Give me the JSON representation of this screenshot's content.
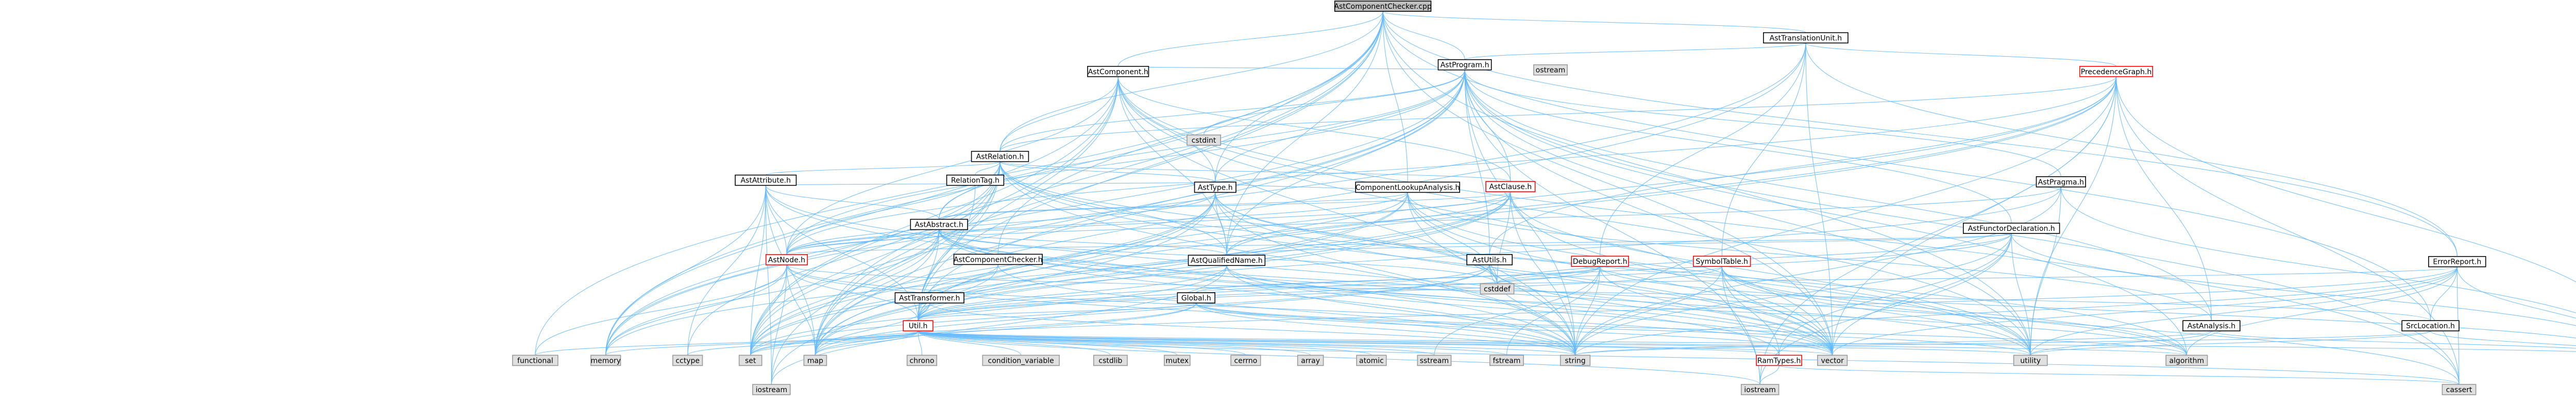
{
  "graph": {
    "root": "AstComponentChecker.cpp",
    "nodes": [
      {
        "id": "root",
        "label": "AstComponentChecker.cpp",
        "kind": "root"
      },
      {
        "id": "tu",
        "label": "AstTranslationUnit.h",
        "kind": "header"
      },
      {
        "id": "prog",
        "label": "AstProgram.h",
        "kind": "header"
      },
      {
        "id": "prec",
        "label": "PrecedenceGraph.h",
        "kind": "headerred"
      },
      {
        "id": "comp",
        "label": "AstComponent.h",
        "kind": "header"
      },
      {
        "id": "rel",
        "label": "AstRelation.h",
        "kind": "header"
      },
      {
        "id": "ostd",
        "label": "ostream",
        "kind": "system"
      },
      {
        "id": "attr",
        "label": "AstAttribute.h",
        "kind": "header"
      },
      {
        "id": "reltag",
        "label": "RelationTag.h",
        "kind": "header"
      },
      {
        "id": "cla",
        "label": "ComponentLookupAnalysis.h",
        "kind": "header"
      },
      {
        "id": "astty",
        "label": "AstType.h",
        "kind": "header"
      },
      {
        "id": "clause",
        "label": "AstClause.h",
        "kind": "headerred"
      },
      {
        "id": "pragma",
        "label": "AstPragma.h",
        "kind": "header"
      },
      {
        "id": "abstr",
        "label": "AstAbstract.h",
        "kind": "header"
      },
      {
        "id": "ccheck",
        "label": "AstComponentChecker.h",
        "kind": "header"
      },
      {
        "id": "sdecl",
        "label": "AstFunctorDeclaration.h",
        "kind": "header"
      },
      {
        "id": "astutils",
        "label": "AstUtils.h",
        "kind": "header"
      },
      {
        "id": "node",
        "label": "AstNode.h",
        "kind": "headerred"
      },
      {
        "id": "qname",
        "label": "AstQualifiedName.h",
        "kind": "header"
      },
      {
        "id": "debug",
        "label": "DebugReport.h",
        "kind": "headerred"
      },
      {
        "id": "symtab",
        "label": "SymbolTable.h",
        "kind": "headerred"
      },
      {
        "id": "errrep",
        "label": "ErrorReport.h",
        "kind": "header"
      },
      {
        "id": "xform",
        "label": "AstTransformer.h",
        "kind": "header"
      },
      {
        "id": "global",
        "label": "Global.h",
        "kind": "header"
      },
      {
        "id": "util",
        "label": "Util.h",
        "kind": "headerred"
      },
      {
        "id": "analysis",
        "label": "AstAnalysis.h",
        "kind": "header"
      },
      {
        "id": "srcloc",
        "label": "SrcLocation.h",
        "kind": "header"
      },
      {
        "id": "ramtypes",
        "label": "RamTypes.h",
        "kind": "headerred"
      },
      {
        "id": "ostream",
        "label": "ostream",
        "kind": "system"
      },
      {
        "id": "cstddef",
        "label": "cstddef",
        "kind": "system"
      },
      {
        "id": "functional",
        "label": "functional",
        "kind": "system"
      },
      {
        "id": "memory",
        "label": "memory",
        "kind": "system"
      },
      {
        "id": "cctype",
        "label": "cctype",
        "kind": "system"
      },
      {
        "id": "set",
        "label": "set",
        "kind": "system"
      },
      {
        "id": "map",
        "label": "map",
        "kind": "system"
      },
      {
        "id": "chrono",
        "label": "chrono",
        "kind": "system"
      },
      {
        "id": "condvar",
        "label": "condition_variable",
        "kind": "system"
      },
      {
        "id": "cstdlib",
        "label": "cstdlib",
        "kind": "system"
      },
      {
        "id": "mutex",
        "label": "mutex",
        "kind": "system"
      },
      {
        "id": "cerrno",
        "label": "cerrno",
        "kind": "system"
      },
      {
        "id": "array",
        "label": "array",
        "kind": "system"
      },
      {
        "id": "atomic",
        "label": "atomic",
        "kind": "system"
      },
      {
        "id": "sstream",
        "label": "sstream",
        "kind": "system"
      },
      {
        "id": "fstream",
        "label": "fstream",
        "kind": "system"
      },
      {
        "id": "string",
        "label": "string",
        "kind": "system"
      },
      {
        "id": "vector",
        "label": "vector",
        "kind": "system"
      },
      {
        "id": "utility",
        "label": "utility",
        "kind": "system"
      },
      {
        "id": "algorithm",
        "label": "algorithm",
        "kind": "system"
      },
      {
        "id": "iostream2",
        "label": "iostream",
        "kind": "system"
      },
      {
        "id": "iostream",
        "label": "iostream",
        "kind": "system"
      },
      {
        "id": "cassert",
        "label": "cassert",
        "kind": "system"
      },
      {
        "id": "cstdint",
        "label": "cstdint",
        "kind": "system"
      }
    ],
    "edges": [
      [
        "root",
        "tu"
      ],
      [
        "root",
        "prog"
      ],
      [
        "root",
        "comp"
      ],
      [
        "root",
        "rel"
      ],
      [
        "root",
        "astty"
      ],
      [
        "root",
        "cla"
      ],
      [
        "root",
        "qname"
      ],
      [
        "root",
        "ccheck"
      ],
      [
        "root",
        "srcloc"
      ],
      [
        "root",
        "errrep"
      ],
      [
        "root",
        "util"
      ],
      [
        "root",
        "functional"
      ],
      [
        "root",
        "memory"
      ],
      [
        "root",
        "map"
      ],
      [
        "root",
        "set"
      ],
      [
        "root",
        "utility"
      ],
      [
        "root",
        "vector"
      ],
      [
        "tu",
        "prog"
      ],
      [
        "tu",
        "prec"
      ],
      [
        "tu",
        "errrep"
      ],
      [
        "tu",
        "debug"
      ],
      [
        "tu",
        "symtab"
      ],
      [
        "tu",
        "memory"
      ],
      [
        "tu",
        "map"
      ],
      [
        "tu",
        "vector"
      ],
      [
        "prog",
        "comp"
      ],
      [
        "prog",
        "rel"
      ],
      [
        "prog",
        "clause"
      ],
      [
        "prog",
        "astty"
      ],
      [
        "prog",
        "sdecl"
      ],
      [
        "prog",
        "abstr"
      ],
      [
        "prog",
        "pragma"
      ],
      [
        "prog",
        "qname"
      ],
      [
        "prog",
        "astutils"
      ],
      [
        "prog",
        "node"
      ],
      [
        "prog",
        "analysis"
      ],
      [
        "prog",
        "util"
      ],
      [
        "prog",
        "cstdint"
      ],
      [
        "prog",
        "map"
      ],
      [
        "prog",
        "set"
      ],
      [
        "prog",
        "string"
      ],
      [
        "prog",
        "vector"
      ],
      [
        "prog",
        "memory"
      ],
      [
        "prog",
        "iostream"
      ],
      [
        "prog",
        "cassert"
      ],
      [
        "prog",
        "algorithm"
      ],
      [
        "prog",
        "utility"
      ],
      [
        "prec",
        "rel"
      ],
      [
        "prec",
        "analysis"
      ],
      [
        "prec",
        "astutils"
      ],
      [
        "prec",
        "node"
      ],
      [
        "prec",
        "util"
      ],
      [
        "prec",
        "string"
      ],
      [
        "prec",
        "vector"
      ],
      [
        "prec",
        "set"
      ],
      [
        "prec",
        "map"
      ],
      [
        "prec",
        "iostream"
      ],
      [
        "prec",
        "cassert"
      ],
      [
        "prec",
        "utility"
      ],
      [
        "prec",
        "ostream"
      ],
      [
        "comp",
        "rel"
      ],
      [
        "comp",
        "clause"
      ],
      [
        "comp",
        "astty"
      ],
      [
        "comp",
        "qname"
      ],
      [
        "comp",
        "node"
      ],
      [
        "comp",
        "util"
      ],
      [
        "comp",
        "set"
      ],
      [
        "comp",
        "map"
      ],
      [
        "comp",
        "string"
      ],
      [
        "comp",
        "vector"
      ],
      [
        "comp",
        "memory"
      ],
      [
        "comp",
        "utility"
      ],
      [
        "comp",
        "cassert"
      ],
      [
        "rel",
        "attr"
      ],
      [
        "rel",
        "reltag"
      ],
      [
        "rel",
        "clause"
      ],
      [
        "rel",
        "astty"
      ],
      [
        "rel",
        "abstr"
      ],
      [
        "rel",
        "qname"
      ],
      [
        "rel",
        "node"
      ],
      [
        "rel",
        "util"
      ],
      [
        "rel",
        "set"
      ],
      [
        "rel",
        "string"
      ],
      [
        "rel",
        "vector"
      ],
      [
        "rel",
        "cstddef"
      ],
      [
        "rel",
        "map"
      ],
      [
        "rel",
        "iostream2"
      ],
      [
        "rel",
        "memory"
      ],
      [
        "rel",
        "cctype"
      ],
      [
        "rel",
        "utility"
      ],
      [
        "attr",
        "abstr"
      ],
      [
        "attr",
        "node"
      ],
      [
        "attr",
        "astty"
      ],
      [
        "attr",
        "util"
      ],
      [
        "attr",
        "cctype"
      ],
      [
        "attr",
        "set"
      ],
      [
        "attr",
        "string"
      ],
      [
        "attr",
        "memory"
      ],
      [
        "attr",
        "vector"
      ],
      [
        "attr",
        "map"
      ],
      [
        "attr",
        "iostream2"
      ],
      [
        "reltag",
        "util"
      ],
      [
        "cla",
        "abstr"
      ],
      [
        "cla",
        "astty"
      ],
      [
        "cla",
        "qname"
      ],
      [
        "cla",
        "node"
      ],
      [
        "cla",
        "analysis"
      ],
      [
        "cla",
        "cstddef"
      ],
      [
        "cla",
        "map"
      ],
      [
        "cla",
        "set"
      ],
      [
        "cla",
        "string"
      ],
      [
        "cla",
        "vector"
      ],
      [
        "cla",
        "utility"
      ],
      [
        "astty",
        "node"
      ],
      [
        "astty",
        "qname"
      ],
      [
        "astty",
        "util"
      ],
      [
        "astty",
        "cstddef"
      ],
      [
        "astty",
        "set"
      ],
      [
        "astty",
        "string"
      ],
      [
        "astty",
        "map"
      ],
      [
        "astty",
        "vector"
      ],
      [
        "astty",
        "iostream2"
      ],
      [
        "astty",
        "algorithm"
      ],
      [
        "clause",
        "abstr"
      ],
      [
        "clause",
        "node"
      ],
      [
        "clause",
        "qname"
      ],
      [
        "clause",
        "util"
      ],
      [
        "clause",
        "cstddef"
      ],
      [
        "clause",
        "set"
      ],
      [
        "clause",
        "string"
      ],
      [
        "clause",
        "vector"
      ],
      [
        "clause",
        "memory"
      ],
      [
        "clause",
        "utility"
      ],
      [
        "clause",
        "map"
      ],
      [
        "pragma",
        "node"
      ],
      [
        "pragma",
        "util"
      ],
      [
        "pragma",
        "ostream"
      ],
      [
        "pragma",
        "string"
      ],
      [
        "pragma",
        "utility"
      ],
      [
        "abstr",
        "node"
      ],
      [
        "abstr",
        "qname"
      ],
      [
        "abstr",
        "ramtypes"
      ],
      [
        "abstr",
        "util"
      ],
      [
        "abstr",
        "cstddef"
      ],
      [
        "abstr",
        "set"
      ],
      [
        "abstr",
        "map"
      ],
      [
        "abstr",
        "string"
      ],
      [
        "abstr",
        "vector"
      ],
      [
        "abstr",
        "memory"
      ],
      [
        "abstr",
        "utility"
      ],
      [
        "abstr",
        "algorithm"
      ],
      [
        "ccheck",
        "xform"
      ],
      [
        "ccheck",
        "util"
      ],
      [
        "ccheck",
        "string"
      ],
      [
        "sdecl",
        "node"
      ],
      [
        "sdecl",
        "qname"
      ],
      [
        "sdecl",
        "ramtypes"
      ],
      [
        "sdecl",
        "util"
      ],
      [
        "sdecl",
        "cstddef"
      ],
      [
        "sdecl",
        "vector"
      ],
      [
        "sdecl",
        "string"
      ],
      [
        "sdecl",
        "iostream"
      ],
      [
        "sdecl",
        "ostream"
      ],
      [
        "sdecl",
        "utility"
      ],
      [
        "astutils",
        "util"
      ],
      [
        "astutils",
        "cstddef"
      ],
      [
        "astutils",
        "set"
      ],
      [
        "astutils",
        "map"
      ],
      [
        "astutils",
        "string"
      ],
      [
        "astutils",
        "vector"
      ],
      [
        "node",
        "util"
      ],
      [
        "node",
        "srcloc"
      ],
      [
        "node",
        "memory"
      ],
      [
        "node",
        "string"
      ],
      [
        "node",
        "set"
      ],
      [
        "node",
        "map"
      ],
      [
        "node",
        "vector"
      ],
      [
        "node",
        "functional"
      ],
      [
        "node",
        "iostream2"
      ],
      [
        "qname",
        "util"
      ],
      [
        "qname",
        "algorithm"
      ],
      [
        "qname",
        "string"
      ],
      [
        "qname",
        "vector"
      ],
      [
        "qname",
        "set"
      ],
      [
        "qname",
        "iostream2"
      ],
      [
        "debug",
        "util"
      ],
      [
        "debug",
        "global"
      ],
      [
        "debug",
        "cstddef"
      ],
      [
        "debug",
        "sstream"
      ],
      [
        "debug",
        "string"
      ],
      [
        "debug",
        "vector"
      ],
      [
        "debug",
        "fstream"
      ],
      [
        "debug",
        "ostream"
      ],
      [
        "symtab",
        "util"
      ],
      [
        "symtab",
        "ramtypes"
      ],
      [
        "symtab",
        "string"
      ],
      [
        "symtab",
        "vector"
      ],
      [
        "symtab",
        "iostream"
      ],
      [
        "symtab",
        "cstddef"
      ],
      [
        "symtab",
        "cassert"
      ],
      [
        "symtab",
        "utility"
      ],
      [
        "symtab",
        "algorithm"
      ],
      [
        "errrep",
        "srcloc"
      ],
      [
        "errrep",
        "global"
      ],
      [
        "errrep",
        "string"
      ],
      [
        "errrep",
        "vector"
      ],
      [
        "errrep",
        "algorithm"
      ],
      [
        "errrep",
        "ostream"
      ],
      [
        "errrep",
        "cassert"
      ],
      [
        "errrep",
        "set"
      ],
      [
        "errrep",
        "utility"
      ],
      [
        "xform",
        "util"
      ],
      [
        "xform",
        "string"
      ],
      [
        "xform",
        "map"
      ],
      [
        "global",
        "util"
      ],
      [
        "global",
        "string"
      ],
      [
        "global",
        "vector"
      ],
      [
        "global",
        "set"
      ],
      [
        "global",
        "map"
      ],
      [
        "global",
        "utility"
      ],
      [
        "global",
        "algorithm"
      ],
      [
        "util",
        "ramtypes"
      ],
      [
        "util",
        "functional"
      ],
      [
        "util",
        "memory"
      ],
      [
        "util",
        "cctype"
      ],
      [
        "util",
        "set"
      ],
      [
        "util",
        "map"
      ],
      [
        "util",
        "chrono"
      ],
      [
        "util",
        "condvar"
      ],
      [
        "util",
        "cstdlib"
      ],
      [
        "util",
        "mutex"
      ],
      [
        "util",
        "cerrno"
      ],
      [
        "util",
        "array"
      ],
      [
        "util",
        "atomic"
      ],
      [
        "util",
        "sstream"
      ],
      [
        "util",
        "fstream"
      ],
      [
        "util",
        "string"
      ],
      [
        "util",
        "vector"
      ],
      [
        "util",
        "utility"
      ],
      [
        "util",
        "algorithm"
      ],
      [
        "util",
        "iostream"
      ],
      [
        "util",
        "cassert"
      ],
      [
        "util",
        "ostream"
      ],
      [
        "analysis",
        "string"
      ],
      [
        "analysis",
        "utility"
      ],
      [
        "analysis",
        "ostream"
      ],
      [
        "srcloc",
        "string"
      ],
      [
        "srcloc",
        "ostream"
      ],
      [
        "srcloc",
        "utility"
      ],
      [
        "ramtypes",
        "cassert"
      ],
      [
        "ramtypes",
        "iostream"
      ]
    ]
  }
}
